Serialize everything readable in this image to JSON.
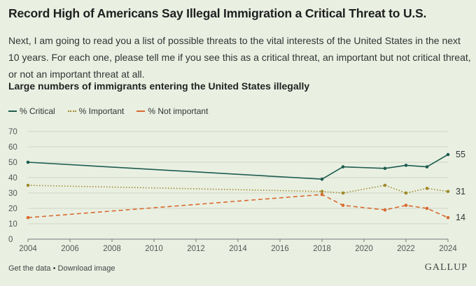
{
  "header": {
    "title": "Record High of Americans Say Illegal Immigration a Critical Threat to U.S.",
    "subtitle": "Next, I am going to read you a list of possible threats to the vital interests of the United States in the next 10 years. For each one, please tell me if you see this as a critical threat, an important but not critical threat, or not an important threat at all.",
    "question": "Large numbers of immigrants entering the United States illegally"
  },
  "legend": [
    {
      "label": "% Critical"
    },
    {
      "label": "% Important"
    },
    {
      "label": "% Not important"
    }
  ],
  "footer": {
    "get_data": "Get the data",
    "separator": " • ",
    "download": "Download image",
    "brand": "GALLUP"
  },
  "colors": {
    "critical": "#1d5c4f",
    "important": "#a1892a",
    "not_important": "#d86a2f",
    "grid": "#cfd6c8",
    "axis": "#777777"
  },
  "chart_data": {
    "type": "line",
    "title": "Large numbers of immigrants entering the United States illegally",
    "xlabel": "",
    "ylabel": "",
    "x_ticks": [
      2004,
      2006,
      2008,
      2010,
      2012,
      2014,
      2016,
      2018,
      2020,
      2022,
      2024
    ],
    "y_ticks": [
      0,
      10,
      20,
      30,
      40,
      50,
      60,
      70
    ],
    "xlim": [
      2004,
      2024
    ],
    "ylim": [
      0,
      70
    ],
    "grid": true,
    "series": [
      {
        "name": "% Critical",
        "style": "solid",
        "x": [
          2004,
          2018,
          2019,
          2021,
          2022,
          2023,
          2024
        ],
        "values": [
          50,
          39,
          47,
          46,
          48,
          47,
          55
        ],
        "end_label": "55"
      },
      {
        "name": "% Important",
        "style": "dotted",
        "x": [
          2004,
          2018,
          2019,
          2021,
          2022,
          2023,
          2024
        ],
        "values": [
          35,
          31,
          30,
          35,
          30,
          33,
          31
        ],
        "end_label": "31"
      },
      {
        "name": "% Not important",
        "style": "dashed",
        "x": [
          2004,
          2018,
          2019,
          2021,
          2022,
          2023,
          2024
        ],
        "values": [
          14,
          29,
          22,
          19,
          22,
          20,
          14
        ],
        "end_label": "14"
      }
    ]
  }
}
